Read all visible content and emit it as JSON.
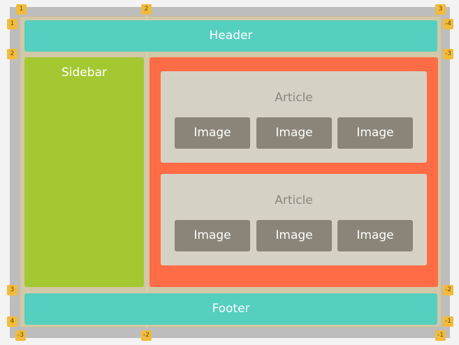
{
  "regions": {
    "header": "Header",
    "sidebar": "Sidebar",
    "footer": "Footer"
  },
  "articles": [
    {
      "title": "Article",
      "images": [
        "Image",
        "Image",
        "Image"
      ]
    },
    {
      "title": "Article",
      "images": [
        "Image",
        "Image",
        "Image"
      ]
    }
  ],
  "line_markers": {
    "top": [
      "1",
      "2",
      "3"
    ],
    "left": [
      "1",
      "2",
      "3",
      "4"
    ],
    "right": [
      "-4",
      "-3",
      "-2",
      "-1"
    ],
    "bottom": [
      "-3",
      "-2",
      "-1"
    ]
  },
  "colors": {
    "header_footer": "#55cfbf",
    "sidebar": "#a4c832",
    "main": "#ff6c45",
    "article": "#d6d1c5",
    "image": "#8a8578",
    "marker": "#f2bb3a"
  }
}
